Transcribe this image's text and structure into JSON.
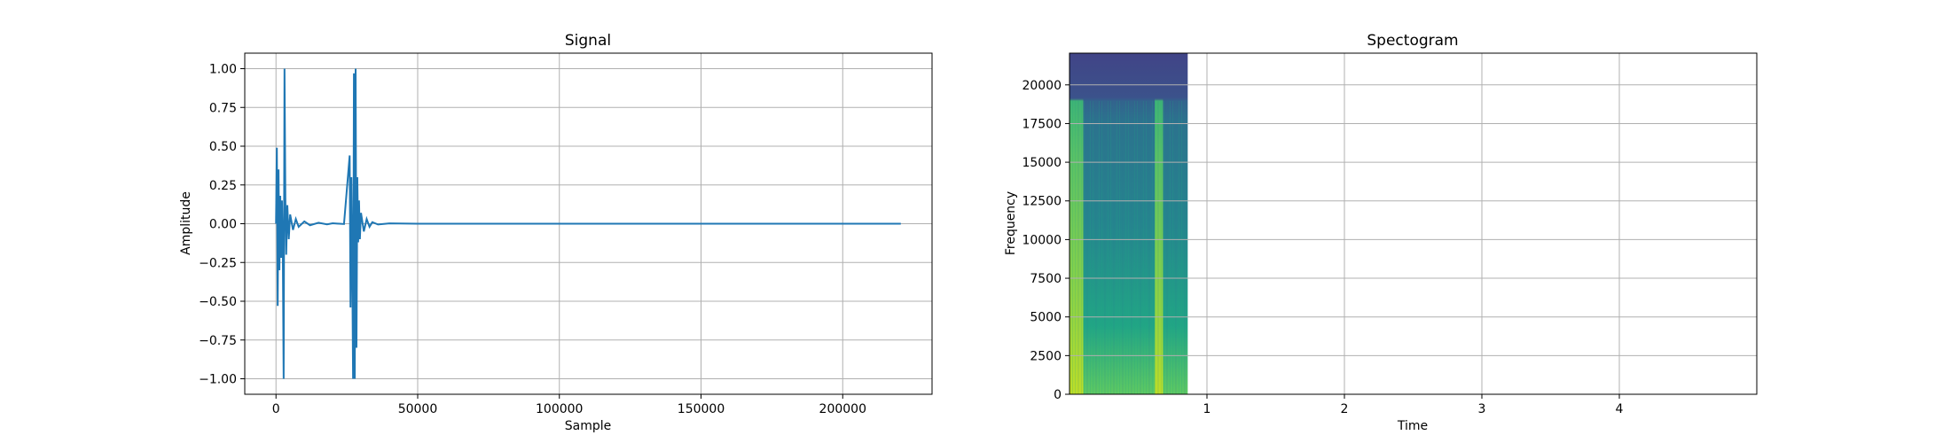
{
  "chart_data": [
    {
      "type": "line",
      "title": "Signal",
      "xlabel": "Sample",
      "ylabel": "Amplitude",
      "xlim": [
        -11025,
        231525
      ],
      "ylim": [
        -1.1,
        1.1
      ],
      "xticks": [
        0,
        50000,
        100000,
        150000,
        200000
      ],
      "xtick_labels": [
        "0",
        "50000",
        "100000",
        "150000",
        "200000"
      ],
      "yticks": [
        -1.0,
        -0.75,
        -0.5,
        -0.25,
        0.0,
        0.25,
        0.5,
        0.75,
        1.0
      ],
      "ytick_labels": [
        "−1.00",
        "−0.75",
        "−0.50",
        "−0.25",
        "0.00",
        "0.25",
        "0.50",
        "0.75",
        "1.00"
      ],
      "grid": true,
      "series": [
        {
          "color": "#1f77b4",
          "x": [
            0,
            300,
            600,
            900,
            1200,
            1500,
            1800,
            2100,
            2400,
            2700,
            3000,
            3300,
            3600,
            4000,
            4500,
            5000,
            6000,
            7000,
            8000,
            10000,
            12000,
            15000,
            18000,
            20000,
            24000,
            26000,
            26300,
            26600,
            26900,
            27200,
            27500,
            27800,
            28100,
            28400,
            28700,
            29000,
            29300,
            29600,
            30000,
            31000,
            32000,
            33000,
            34000,
            36000,
            40000,
            50000,
            100000,
            150000,
            200000,
            220500
          ],
          "y": [
            0.0,
            0.49,
            -0.53,
            0.35,
            -0.3,
            0.18,
            -0.22,
            0.15,
            -0.17,
            -1.0,
            1.0,
            0.17,
            -0.2,
            0.12,
            -0.1,
            0.06,
            -0.04,
            0.03,
            -0.02,
            0.015,
            -0.01,
            0.006,
            -0.004,
            0.003,
            -0.002,
            0.44,
            -0.54,
            0.3,
            -0.25,
            -1.0,
            0.97,
            -1.0,
            1.0,
            -0.8,
            0.3,
            -0.12,
            0.15,
            -0.1,
            0.07,
            -0.05,
            0.03,
            -0.02,
            0.01,
            -0.005,
            0.002,
            0.0,
            0.0,
            0.0,
            0.0,
            0.0
          ]
        }
      ]
    },
    {
      "type": "heatmap",
      "title": "Spectogram",
      "xlabel": "Time",
      "ylabel": "Frequency",
      "xlim": [
        0,
        5.0
      ],
      "ylim": [
        0,
        22050
      ],
      "xticks": [
        1,
        2,
        3,
        4
      ],
      "xtick_labels": [
        "1",
        "2",
        "3",
        "4"
      ],
      "yticks": [
        0,
        2500,
        5000,
        7500,
        10000,
        12500,
        15000,
        17500,
        20000
      ],
      "ytick_labels": [
        "0",
        "2500",
        "5000",
        "7500",
        "10000",
        "12500",
        "15000",
        "17500",
        "20000"
      ],
      "grid": true,
      "colormap": "viridis",
      "data_extent_time": [
        0,
        0.86
      ],
      "events": [
        {
          "time_start": 0.0,
          "time_end": 0.1,
          "energy": "high"
        },
        {
          "time_start": 0.62,
          "time_end": 0.68,
          "energy": "high"
        }
      ]
    }
  ]
}
